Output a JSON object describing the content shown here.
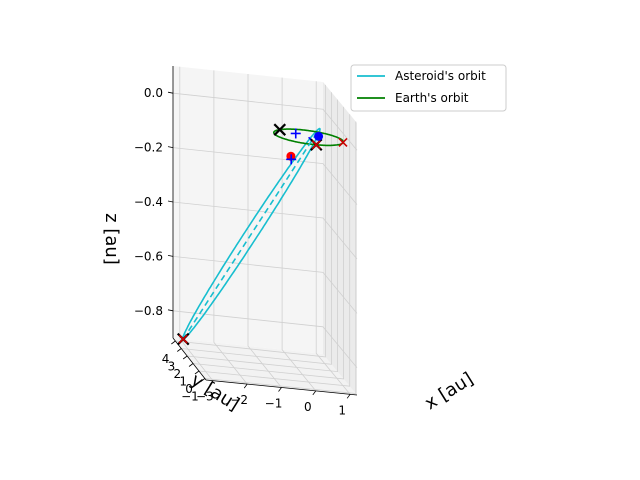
{
  "chart_data": {
    "type": "line",
    "projection": "3d",
    "title": "",
    "xlabel": "x [au]",
    "ylabel": "y [au]",
    "zlabel": "z [au]",
    "xlim": [
      -3.2,
      1.2
    ],
    "ylim": [
      -1.2,
      4.4
    ],
    "zlim": [
      -0.9,
      0.1
    ],
    "x_ticks": [
      "−3",
      "−2",
      "−1",
      "0",
      "1"
    ],
    "y_ticks": [
      "−1",
      "0",
      "1",
      "2",
      "3",
      "4"
    ],
    "z_ticks": [
      "−0.8",
      "−0.6",
      "−0.4",
      "−0.2",
      "0.0"
    ],
    "grid": true,
    "legend": {
      "placement": "upper-right",
      "entries": [
        {
          "label": "Asteroid's orbit",
          "color": "#17becf"
        },
        {
          "label": "Earth's orbit",
          "color": "#008000"
        }
      ]
    },
    "series": [
      {
        "name": "Asteroid's orbit",
        "kind": "ellipse",
        "color": "#17becf",
        "center": [
          -1.34,
          1.915,
          -0.425
        ],
        "semi_major_vector": [
          -1.56,
          2.485,
          -0.475
        ],
        "semi_minor_vector": [
          0.25,
          0.15,
          0.0
        ]
      },
      {
        "name": "Earth's orbit",
        "kind": "circle",
        "color": "#008000",
        "center": [
          0.0,
          0.0,
          0.0
        ],
        "radius": 1.0
      }
    ],
    "lines": [
      {
        "from": [
          -2.9,
          4.4,
          -0.9
        ],
        "to": [
          0.22,
          -0.57,
          0.05
        ],
        "color": "#17becf",
        "style": "dashed"
      },
      {
        "from": [
          0.0,
          0.0,
          0.0
        ],
        "to": [
          0.05,
          -0.95,
          0.0
        ],
        "color": "#0000ff",
        "style": "dashed"
      }
    ],
    "markers": [
      {
        "type": "x",
        "color": "#000000",
        "size": "large",
        "point": [
          -0.72,
          0.69,
          0.0
        ]
      },
      {
        "type": "x",
        "color": "#000000",
        "size": "large",
        "point": [
          0.05,
          -0.99,
          0.0
        ]
      },
      {
        "type": "x",
        "color": "#000000",
        "size": "large",
        "point": [
          -2.9,
          4.4,
          -0.9
        ]
      },
      {
        "type": "x",
        "color": "#cc0000",
        "size": "small",
        "point": [
          -2.9,
          4.4,
          -0.9
        ]
      },
      {
        "type": "x",
        "color": "#cc0000",
        "size": "small",
        "point": [
          0.96,
          -0.25,
          0.0
        ]
      },
      {
        "type": "x",
        "color": "#cc0000",
        "size": "small",
        "point": [
          0.05,
          -0.99,
          0.0
        ]
      },
      {
        "type": "dot",
        "color": "#ff0000",
        "point": [
          -0.35,
          0.95,
          -0.1
        ]
      },
      {
        "type": "dot",
        "color": "#0000ff",
        "point": [
          0.13,
          -0.92,
          0.03
        ]
      },
      {
        "type": "plus",
        "color": "#0000ff",
        "point": [
          -0.31,
          0.37,
          0.0
        ]
      },
      {
        "type": "plus",
        "color": "#0000ff",
        "point": [
          -0.42,
          0.5,
          -0.1
        ]
      }
    ]
  }
}
